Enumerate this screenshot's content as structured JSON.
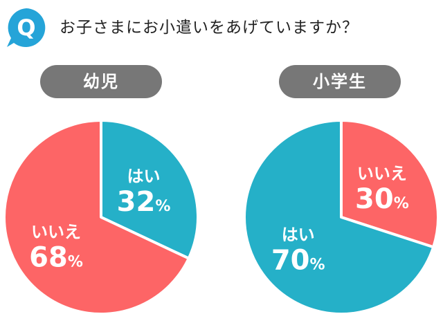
{
  "question": {
    "badge_letter": "Q",
    "text": "お子さまにお小遣いをあげていますか？"
  },
  "colors": {
    "yes": "#25b0c8",
    "no": "#fd6566",
    "pill": "#777777",
    "badge": "#25a4d8"
  },
  "chart_data": [
    {
      "type": "pie",
      "title": "幼児",
      "slices": [
        {
          "label": "はい",
          "value": 32,
          "display": "32",
          "unit": "%"
        },
        {
          "label": "いいえ",
          "value": 68,
          "display": "68",
          "unit": "%"
        }
      ]
    },
    {
      "type": "pie",
      "title": "小学生",
      "slices": [
        {
          "label": "いいえ",
          "value": 30,
          "display": "30",
          "unit": "%"
        },
        {
          "label": "はい",
          "value": 70,
          "display": "70",
          "unit": "%"
        }
      ]
    }
  ]
}
